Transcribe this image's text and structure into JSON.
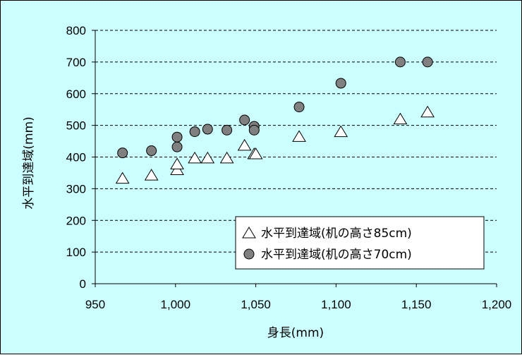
{
  "chart_data": {
    "type": "scatter",
    "xlabel": "身長(mm)",
    "ylabel": "水平到達域(mm)",
    "xlim": [
      950,
      1200
    ],
    "ylim": [
      0,
      800
    ],
    "x_ticks": [
      "950",
      "1,000",
      "1,050",
      "1,100",
      "1,150",
      "1,200"
    ],
    "x_tick_values": [
      950,
      1000,
      1050,
      1100,
      1150,
      1200
    ],
    "y_ticks": [
      "0",
      "100",
      "200",
      "300",
      "400",
      "500",
      "600",
      "700",
      "800"
    ],
    "y_tick_values": [
      0,
      100,
      200,
      300,
      400,
      500,
      600,
      700,
      800
    ],
    "grid": "horizontal-dashed",
    "legend_position": "bottom-right",
    "series": [
      {
        "name": "水平到達域(机の高さ85cm)",
        "marker": "triangle",
        "color": "#ffffff",
        "points": [
          [
            967,
            333
          ],
          [
            985,
            343
          ],
          [
            1001,
            360
          ],
          [
            1001,
            378
          ],
          [
            1012,
            397
          ],
          [
            1020,
            397
          ],
          [
            1032,
            397
          ],
          [
            1043,
            437
          ],
          [
            1049,
            410
          ],
          [
            1050,
            410
          ],
          [
            1077,
            465
          ],
          [
            1103,
            480
          ],
          [
            1140,
            520
          ],
          [
            1157,
            542
          ]
        ]
      },
      {
        "name": "水平到達域(机の高さ70cm)",
        "marker": "circle",
        "color": "#808080",
        "points": [
          [
            967,
            413
          ],
          [
            985,
            420
          ],
          [
            1001,
            432
          ],
          [
            1001,
            463
          ],
          [
            1012,
            480
          ],
          [
            1020,
            488
          ],
          [
            1032,
            485
          ],
          [
            1043,
            517
          ],
          [
            1049,
            497
          ],
          [
            1049,
            485
          ],
          [
            1077,
            558
          ],
          [
            1103,
            633
          ],
          [
            1140,
            700
          ],
          [
            1157,
            700
          ]
        ]
      }
    ]
  }
}
